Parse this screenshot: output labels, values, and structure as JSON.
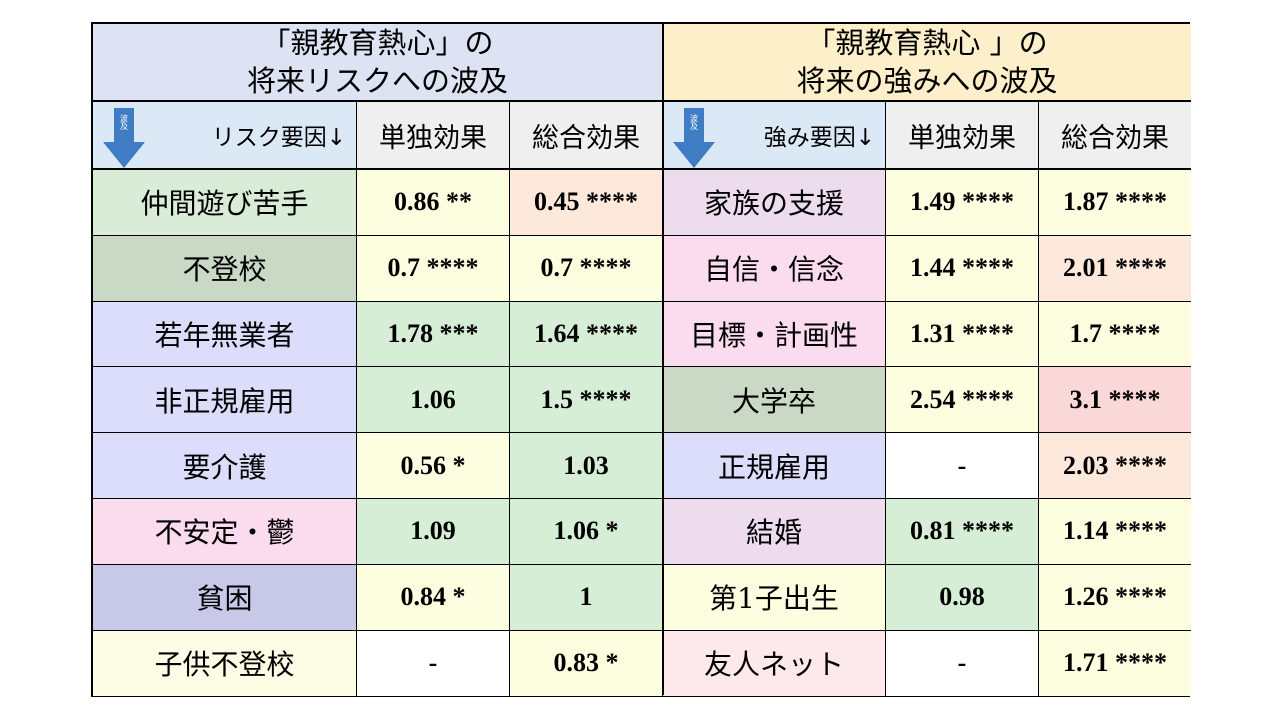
{
  "left_title": [
    "「親教育熱心」の",
    "将来リスクへの波及"
  ],
  "right_title": [
    "「親教育熱心 」の",
    "将来の強みへの波及"
  ],
  "arrow_text": "波及",
  "left_header": {
    "factor": "リスク要因↓",
    "solo": "単独効果",
    "total": "総合効果"
  },
  "right_header": {
    "factor": "強み要因↓",
    "solo": "単独効果",
    "total": "総合効果"
  },
  "left_rows": [
    {
      "label": "仲間遊び苦手",
      "solo": "0.86 **",
      "total": "0.45 ****"
    },
    {
      "label": "不登校",
      "solo": "0.7 ****",
      "total": "0.7 ****"
    },
    {
      "label": "若年無業者",
      "solo": "1.78 ***",
      "total": "1.64 ****"
    },
    {
      "label": "非正規雇用",
      "solo": "1.06",
      "total": "1.5 ****"
    },
    {
      "label": "要介護",
      "solo": "0.56 *",
      "total": "1.03"
    },
    {
      "label": "不安定・鬱",
      "solo": "1.09",
      "total": "1.06 *"
    },
    {
      "label": "貧困",
      "solo": "0.84 *",
      "total": "1"
    },
    {
      "label": "子供不登校",
      "solo": "-",
      "total": "0.83 *"
    }
  ],
  "right_rows": [
    {
      "label": "家族の支援",
      "solo": "1.49 ****",
      "total": "1.87 ****"
    },
    {
      "label": "自信・信念",
      "solo": "1.44 ****",
      "total": "2.01 ****"
    },
    {
      "label": "目標・計画性",
      "solo": "1.31 ****",
      "total": "1.7 ****"
    },
    {
      "label": "大学卒",
      "solo": "2.54 ****",
      "total": "3.1 ****"
    },
    {
      "label": "正規雇用",
      "solo": "-",
      "total": "2.03 ****"
    },
    {
      "label": "結婚",
      "solo": "0.81 ****",
      "total": "1.14 ****"
    },
    {
      "label": "第1子出生",
      "solo": "0.98",
      "total": "1.26 ****"
    },
    {
      "label": "友人ネット",
      "solo": "-",
      "total": "1.71 ****"
    }
  ],
  "colors": {
    "left_title_bg": "#dde3f3",
    "right_title_bg": "#fdefc9",
    "header_factor_bg": "#dbe8f5",
    "header_col_bg": "#efefef",
    "arrow": "#3f7cc4",
    "left_label_bg": [
      "#d8ecd8",
      "#c9d9c5",
      "#dcdcfb",
      "#dcdcfb",
      "#dcdcfb",
      "#fbdcee",
      "#c8c8e9",
      "#fdfde6"
    ],
    "left_solo_bg": [
      "#fdfde0",
      "#fdfde0",
      "#d6eed6",
      "#d6eed6",
      "#fdfde0",
      "#d6eed6",
      "#fdfde0",
      "#ffffff"
    ],
    "left_total_bg": [
      "#fde8dc",
      "#fdfde0",
      "#d6eed6",
      "#d6eed6",
      "#d6eed6",
      "#d6eed6",
      "#d6eed6",
      "#fdfde0"
    ],
    "right_label_bg": [
      "#ecdcee",
      "#fbdcee",
      "#fbdcee",
      "#c9d9c5",
      "#dcdcfb",
      "#ecdcee",
      "#fdfde0",
      "#fde8ec"
    ],
    "right_solo_bg": [
      "#fdfde0",
      "#fdfde0",
      "#fdfde0",
      "#fdfde0",
      "#ffffff",
      "#d6eed6",
      "#d6eed6",
      "#ffffff"
    ],
    "right_total_bg": [
      "#fdfde0",
      "#fde8dc",
      "#fdfde0",
      "#fbd8d8",
      "#fde8dc",
      "#fdfde0",
      "#fdfde0",
      "#fdfde0"
    ]
  }
}
